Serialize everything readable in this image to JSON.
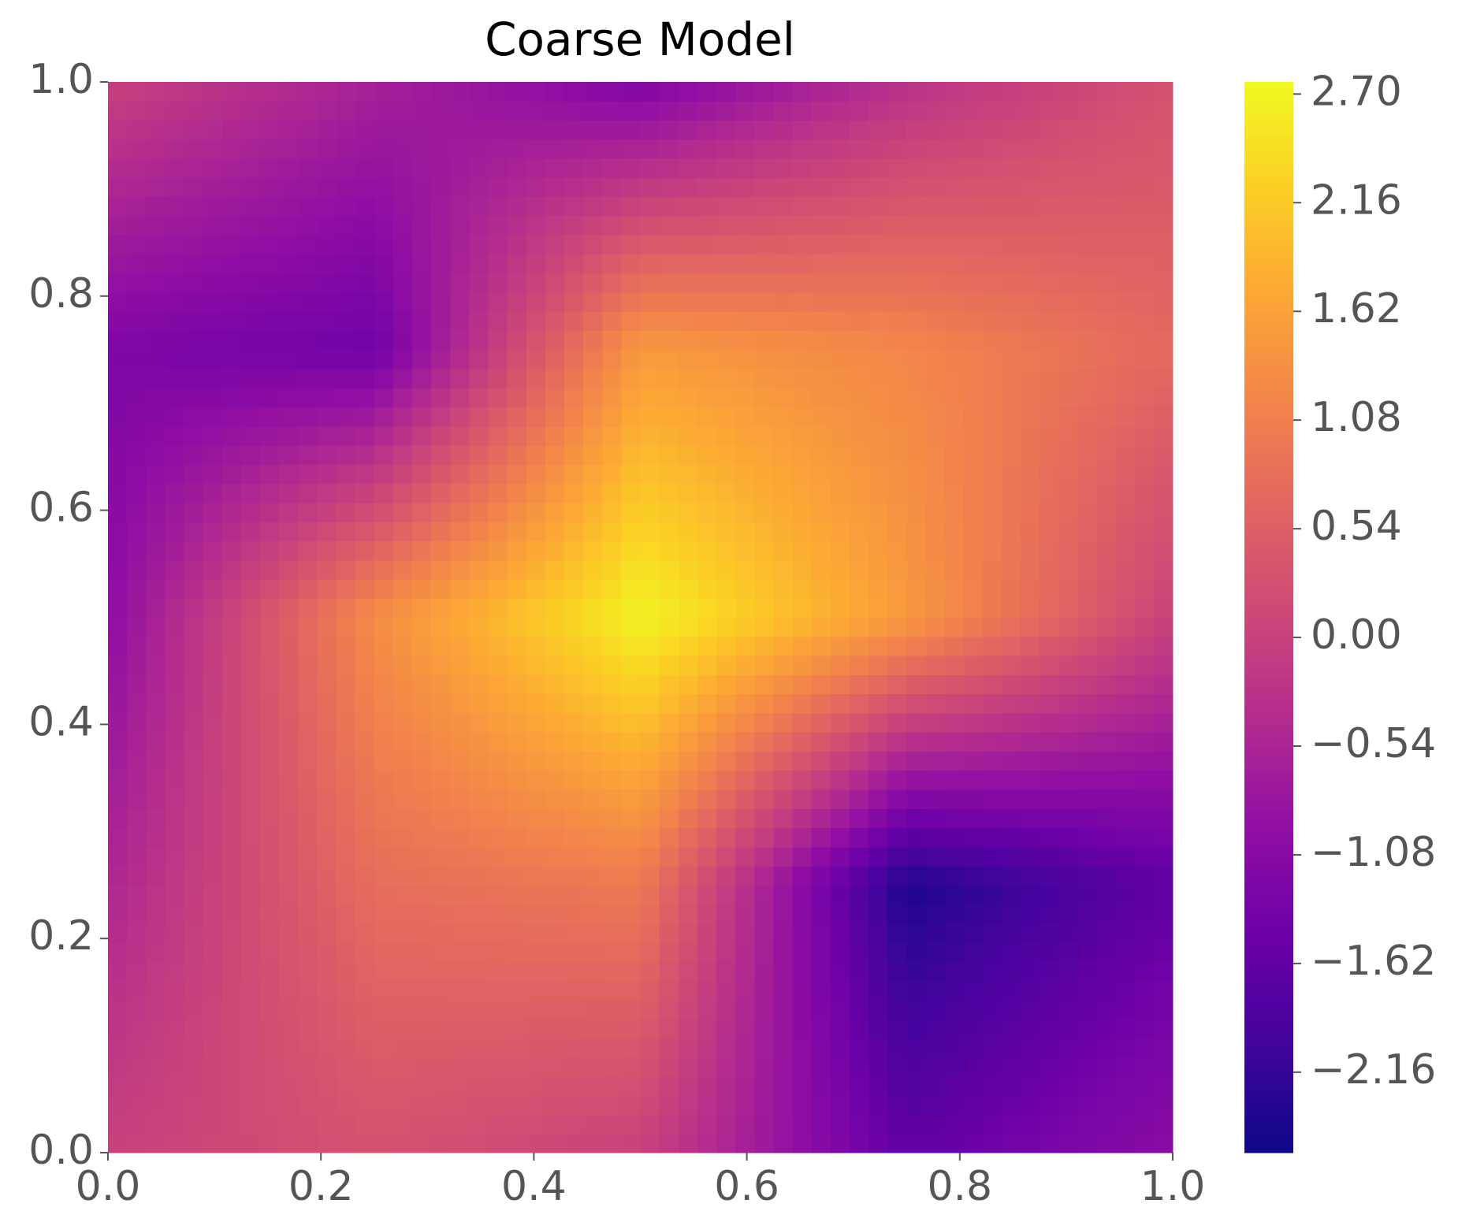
{
  "chart_data": {
    "type": "heatmap",
    "title": "Coarse Model",
    "colormap": "plasma",
    "x": [
      0,
      0.25,
      0.5,
      0.75,
      1.0
    ],
    "y": [
      0,
      0.25,
      0.5,
      0.75,
      1.0
    ],
    "z": [
      [
        0.0,
        0.3,
        0.0,
        -1.6,
        -1.0
      ],
      [
        -0.5,
        0.8,
        1.0,
        -2.4,
        -1.6
      ],
      [
        -1.0,
        1.3,
        2.7,
        1.5,
        0.0
      ],
      [
        -1.2,
        -1.4,
        1.5,
        1.2,
        0.7
      ],
      [
        0.0,
        -0.6,
        -1.2,
        -0.3,
        0.3
      ]
    ],
    "xlim": [
      0,
      1
    ],
    "ylim": [
      0,
      1
    ],
    "xticks": [
      {
        "value": 0,
        "label": "0.0"
      },
      {
        "value": 0.2,
        "label": "0.2"
      },
      {
        "value": 0.4,
        "label": "0.4"
      },
      {
        "value": 0.6,
        "label": "0.6"
      },
      {
        "value": 0.8,
        "label": "0.8"
      },
      {
        "value": 1,
        "label": "1.0"
      }
    ],
    "yticks": [
      {
        "value": 0,
        "label": "0.0"
      },
      {
        "value": 0.2,
        "label": "0.2"
      },
      {
        "value": 0.4,
        "label": "0.4"
      },
      {
        "value": 0.6,
        "label": "0.6"
      },
      {
        "value": 0.8,
        "label": "0.8"
      },
      {
        "value": 1,
        "label": "1.0"
      }
    ],
    "zlim": [
      -2.56,
      2.76
    ],
    "zticks": [
      {
        "value": -2.16,
        "label": "−2.16"
      },
      {
        "value": -1.62,
        "label": "−1.62"
      },
      {
        "value": -1.08,
        "label": "−1.08"
      },
      {
        "value": -0.54,
        "label": "−0.54"
      },
      {
        "value": 0,
        "label": "0.00"
      },
      {
        "value": 0.54,
        "label": "0.54"
      },
      {
        "value": 1.08,
        "label": "1.08"
      },
      {
        "value": 1.62,
        "label": "1.62"
      },
      {
        "value": 2.16,
        "label": "2.16"
      },
      {
        "value": 2.7,
        "label": "2.70"
      }
    ]
  }
}
